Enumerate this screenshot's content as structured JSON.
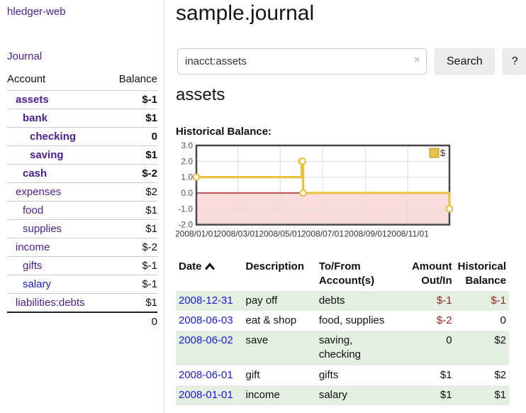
{
  "sidebar": {
    "app_title": "hledger-web",
    "nav": {
      "journal_label": "Journal"
    },
    "accounts_table": {
      "headers": {
        "account": "Account",
        "balance": "Balance"
      },
      "rows": [
        {
          "name": "assets",
          "indent": 1,
          "bold": true,
          "link": "purple",
          "balance": "$-1",
          "balance_class": "neg"
        },
        {
          "name": "bank",
          "indent": 2,
          "bold": true,
          "link": "purple",
          "balance": "$1",
          "balance_class": ""
        },
        {
          "name": "checking",
          "indent": 3,
          "bold": true,
          "link": "purple",
          "balance": "0",
          "balance_class": ""
        },
        {
          "name": "saving",
          "indent": 3,
          "bold": true,
          "link": "purple",
          "balance": "$1",
          "balance_class": ""
        },
        {
          "name": "cash",
          "indent": 2,
          "bold": true,
          "link": "purple",
          "balance": "$-2",
          "balance_class": "neg"
        },
        {
          "name": "expenses",
          "indent": 1,
          "bold": false,
          "link": "purple",
          "balance": "$2",
          "balance_class": ""
        },
        {
          "name": "food",
          "indent": 2,
          "bold": false,
          "link": "purple",
          "balance": "$1",
          "balance_class": ""
        },
        {
          "name": "supplies",
          "indent": 2,
          "bold": false,
          "link": "purple",
          "balance": "$1",
          "balance_class": ""
        },
        {
          "name": "income",
          "indent": 1,
          "bold": false,
          "link": "purple",
          "balance": "$-2",
          "balance_class": "softneg"
        },
        {
          "name": "gifts",
          "indent": 2,
          "bold": false,
          "link": "purple",
          "balance": "$-1",
          "balance_class": "softneg"
        },
        {
          "name": "salary",
          "indent": 2,
          "bold": false,
          "link": "blue",
          "balance": "$-1",
          "balance_class": "softneg"
        },
        {
          "name": "liabilities:debts",
          "indent": 1,
          "bold": false,
          "link": "purple",
          "balance": "$1",
          "balance_class": ""
        }
      ],
      "total": "0"
    }
  },
  "main": {
    "title": "sample.journal",
    "search": {
      "value": "inacct:assets",
      "clear_icon": "×",
      "button_label": "Search",
      "help_label": "?"
    },
    "account_heading": "assets",
    "chart_heading": "Historical Balance:"
  },
  "chart_data": {
    "type": "line",
    "title": "Historical Balance:",
    "style": "step-after",
    "series": [
      {
        "name": "$",
        "color": "#e7c341",
        "points": [
          {
            "date": "2008-01-01",
            "value": 1
          },
          {
            "date": "2008-06-01",
            "value": 2
          },
          {
            "date": "2008-06-02",
            "value": 2
          },
          {
            "date": "2008-06-03",
            "value": 0
          },
          {
            "date": "2008-12-31",
            "value": -1
          }
        ]
      }
    ],
    "x_range": [
      "2008-01-01",
      "2008-12-31"
    ],
    "x_ticks": [
      "2008/01/01",
      "2008/03/01",
      "2008/05/01",
      "2008/07/01",
      "2008/09/01",
      "2008/11/01"
    ],
    "y_ticks": [
      3.0,
      2.0,
      1.0,
      0.0,
      -1.0,
      -2.0
    ],
    "ylim": [
      -2,
      3
    ],
    "grid": true,
    "legend": {
      "label": "$",
      "position": "top-right"
    },
    "negative_fill": "#fbdcdc",
    "zero_line_color": "#a01313"
  },
  "register_table": {
    "headers": {
      "date": "Date",
      "description": "Description",
      "tofrom": "To/From Account(s)",
      "amount": "Amount Out/In",
      "balance": "Historical Balance"
    },
    "sort": {
      "column": "date",
      "direction": "ascending",
      "icon": "caret-up"
    },
    "rows": [
      {
        "date": "2008-12-31",
        "description": "pay off",
        "accounts": "debts",
        "amount": "$-1",
        "amount_class": "neg",
        "balance": "$-1",
        "balance_class": "neg"
      },
      {
        "date": "2008-06-03",
        "description": "eat & shop",
        "accounts": "food, supplies",
        "amount": "$-2",
        "amount_class": "neg",
        "balance": "0",
        "balance_class": ""
      },
      {
        "date": "2008-06-02",
        "description": "save",
        "accounts": "saving, checking",
        "amount": "0",
        "amount_class": "",
        "balance": "$2",
        "balance_class": ""
      },
      {
        "date": "2008-06-01",
        "description": "gift",
        "accounts": "gifts",
        "amount": "$1",
        "amount_class": "",
        "balance": "$2",
        "balance_class": ""
      },
      {
        "date": "2008-01-01",
        "description": "income",
        "accounts": "salary",
        "amount": "$1",
        "amount_class": "",
        "balance": "$1",
        "balance_class": ""
      }
    ]
  },
  "colors": {
    "link_purple": "#4b1d99",
    "link_blue": "#1a1ae0",
    "negative_red": "#941f1f",
    "soft_negative": "#c28a8a",
    "row_stripe_green": "#e3efe1",
    "chart_line_gold": "#e7c341",
    "chart_negative_fill": "#fbdcdc",
    "chart_zero_line": "#a01313"
  }
}
